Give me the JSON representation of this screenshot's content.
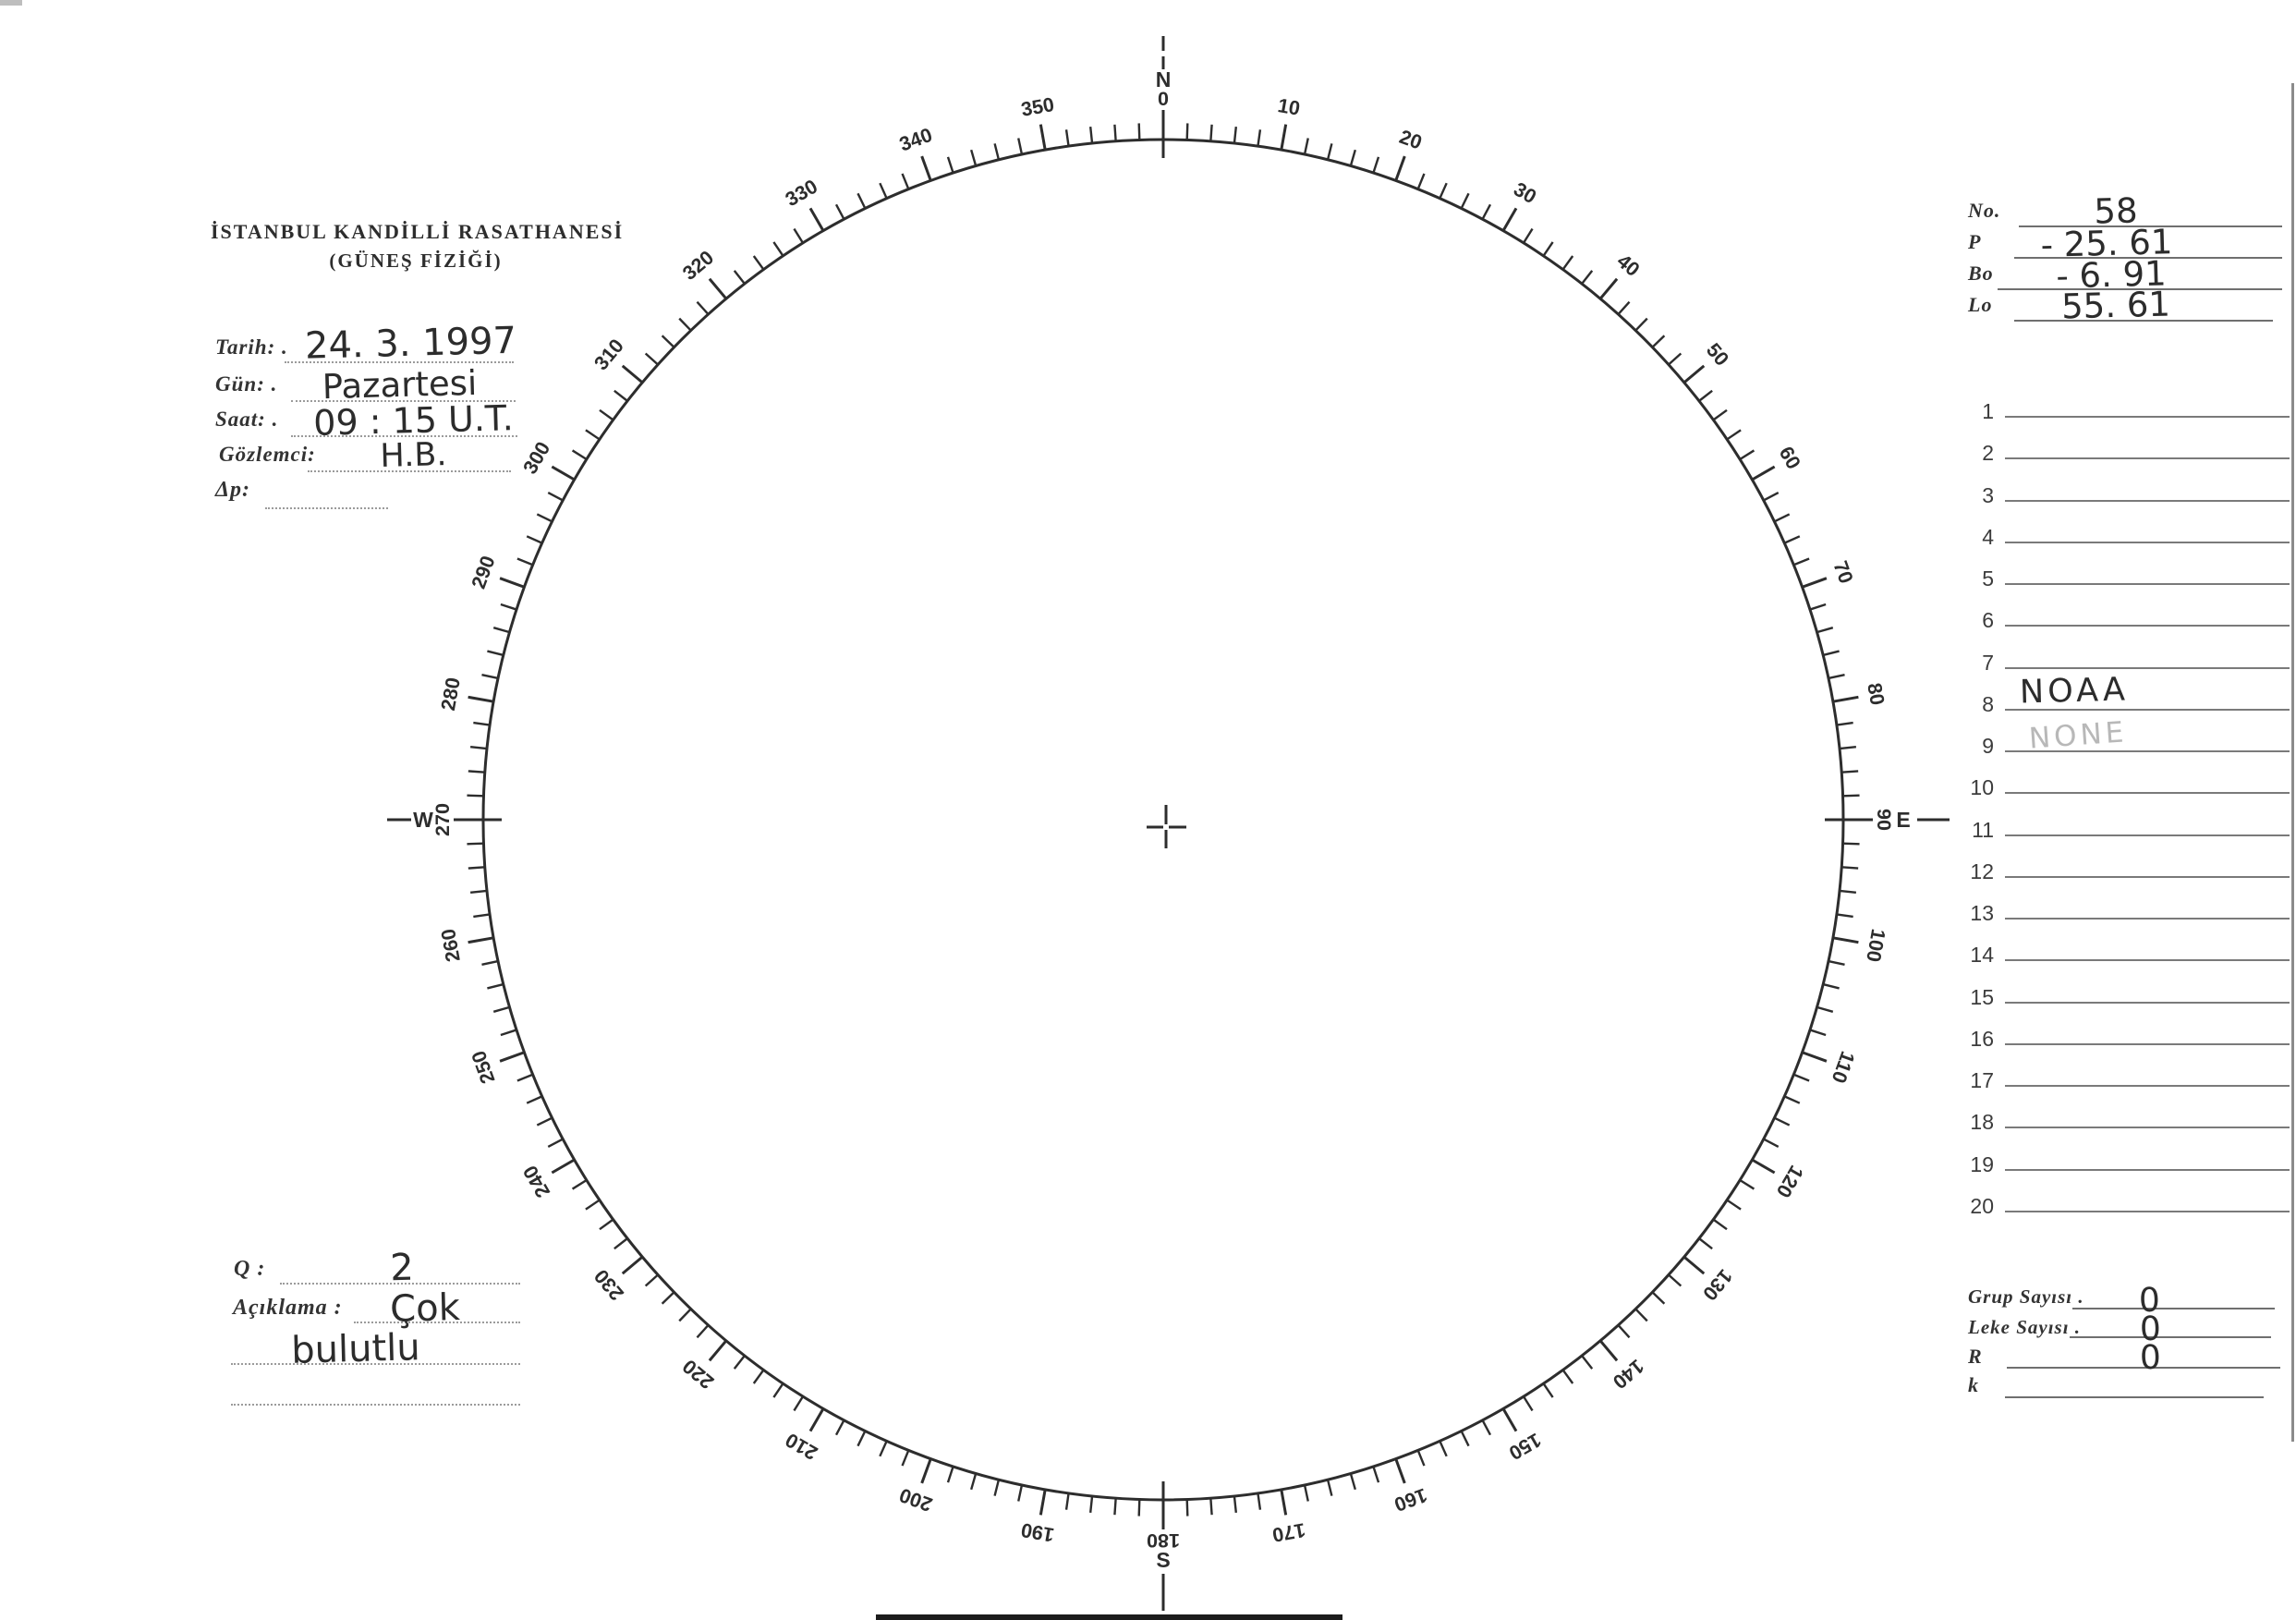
{
  "header": {
    "title": "İSTANBUL KANDİLLİ RASATHANESİ",
    "subtitle": "(GÜNEŞ FİZİĞİ)"
  },
  "observation": {
    "fields": [
      {
        "label": "Tarih: .",
        "value": "24. 3. 1997"
      },
      {
        "label": "Gün: .",
        "value": "Pazartesi"
      },
      {
        "label": "Saat: .",
        "value": "09 : 15  U.T."
      },
      {
        "label": "Gözlemci:",
        "value": "H.B."
      },
      {
        "label": "Δp:",
        "value": ""
      }
    ]
  },
  "ephemeris": {
    "rows": [
      {
        "label": "No.",
        "value": "58"
      },
      {
        "label": "P",
        "value": "- 25. 61"
      },
      {
        "label": "Bo",
        "value": "- 6. 91"
      },
      {
        "label": "Lo",
        "value": "55. 61"
      }
    ]
  },
  "spot_list": {
    "rows": [
      {
        "num": "1",
        "value": "",
        "style": ""
      },
      {
        "num": "2",
        "value": "",
        "style": ""
      },
      {
        "num": "3",
        "value": "",
        "style": ""
      },
      {
        "num": "4",
        "value": "",
        "style": ""
      },
      {
        "num": "5",
        "value": "",
        "style": ""
      },
      {
        "num": "6",
        "value": "",
        "style": ""
      },
      {
        "num": "7",
        "value": "",
        "style": ""
      },
      {
        "num": "8",
        "value": "NOAA",
        "style": "ink"
      },
      {
        "num": "9",
        "value": "NONE",
        "style": "pencil"
      },
      {
        "num": "10",
        "value": "",
        "style": ""
      },
      {
        "num": "11",
        "value": "",
        "style": ""
      },
      {
        "num": "12",
        "value": "",
        "style": ""
      },
      {
        "num": "13",
        "value": "",
        "style": ""
      },
      {
        "num": "14",
        "value": "",
        "style": ""
      },
      {
        "num": "15",
        "value": "",
        "style": ""
      },
      {
        "num": "16",
        "value": "",
        "style": ""
      },
      {
        "num": "17",
        "value": "",
        "style": ""
      },
      {
        "num": "18",
        "value": "",
        "style": ""
      },
      {
        "num": "19",
        "value": "",
        "style": ""
      },
      {
        "num": "20",
        "value": "",
        "style": ""
      }
    ]
  },
  "quality": {
    "q_label": "Q :",
    "q_value": "2",
    "note_label": "Açıklama :",
    "note_line1": "Çok",
    "note_line2": "bulutlu"
  },
  "summary": {
    "rows": [
      {
        "label": "Grup Sayısı .",
        "value": "0"
      },
      {
        "label": "Leke Sayısı .",
        "value": "0"
      },
      {
        "label": "R",
        "value": "0"
      },
      {
        "label": "k",
        "value": ""
      }
    ]
  },
  "dial": {
    "minor_step_deg": 2,
    "major_step_deg": 10,
    "label_step_deg": 10,
    "degree_labels": [
      10,
      20,
      30,
      40,
      50,
      60,
      70,
      80,
      100,
      110,
      120,
      130,
      140,
      150,
      160,
      170,
      190,
      200,
      210,
      220,
      230,
      240,
      250,
      260,
      280,
      290,
      300,
      310,
      320,
      330,
      340,
      350
    ],
    "cardinals": [
      {
        "angle": 0,
        "letter": "N",
        "number": "0"
      },
      {
        "angle": 90,
        "letter": "E",
        "number": "90"
      },
      {
        "angle": 180,
        "letter": "S",
        "number": "180"
      },
      {
        "angle": 270,
        "letter": "W",
        "number": "270"
      }
    ],
    "ink_color": "#2d2d2d"
  }
}
